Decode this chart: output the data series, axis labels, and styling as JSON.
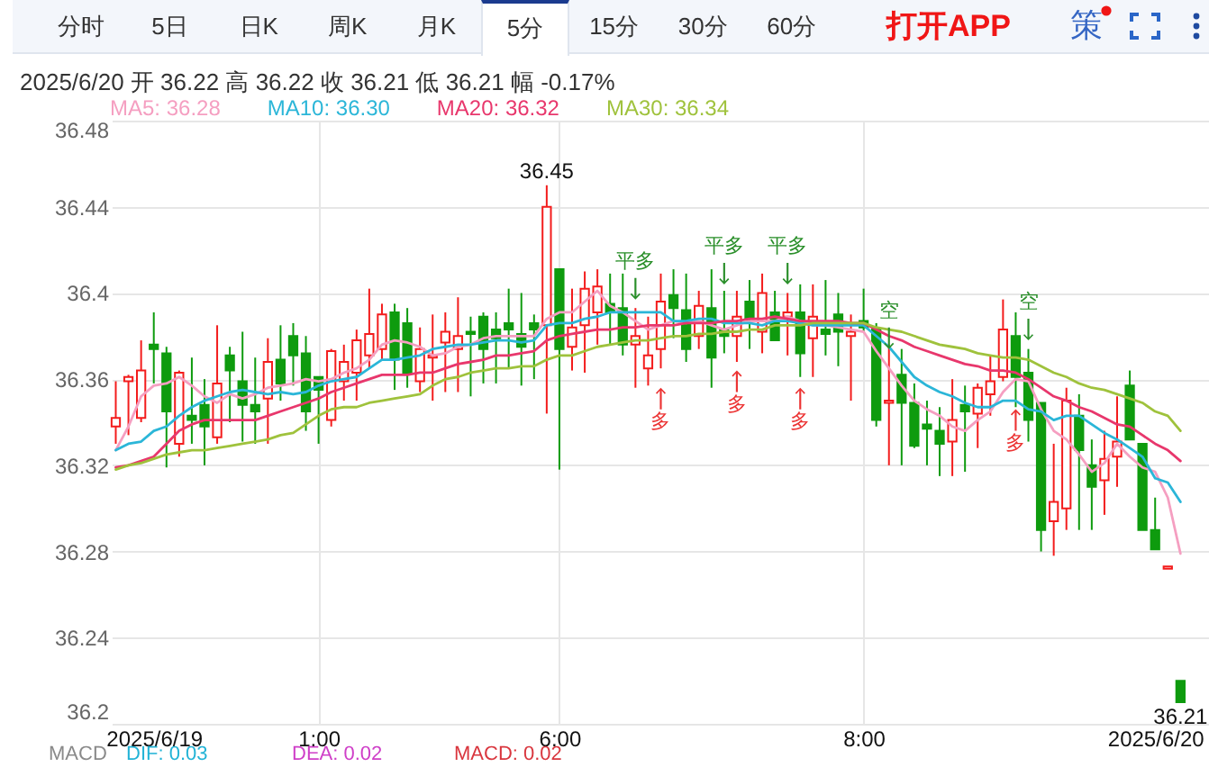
{
  "chart_data": {
    "type": "candlestick",
    "subtitle": "2025/6/20 开 36.22 高 36.22 收 36.21 低 36.21 幅 -0.17%",
    "categories": [
      null,
      null,
      null,
      "2025/6/19",
      null,
      null,
      null,
      null,
      null,
      null,
      null,
      null,
      null,
      null,
      null,
      null,
      "1:00",
      null,
      null,
      null,
      null,
      null,
      null,
      null,
      null,
      null,
      null,
      null,
      null,
      null,
      null,
      null,
      null,
      null,
      null,
      "6:00",
      null,
      null,
      null,
      null,
      null,
      null,
      null,
      null,
      null,
      null,
      null,
      null,
      null,
      null,
      null,
      null,
      null,
      null,
      null,
      null,
      null,
      null,
      null,
      "8:00",
      null,
      null,
      null,
      null,
      null,
      null,
      null,
      null,
      null,
      null,
      null,
      null,
      null,
      null,
      null,
      null,
      null,
      null,
      null,
      null,
      null,
      null,
      "2025/6/20",
      null,
      null
    ],
    "ohlc": [
      [
        36.338,
        36.359,
        36.33,
        36.342
      ],
      [
        36.359,
        36.362,
        36.334,
        36.361
      ],
      [
        36.342,
        36.378,
        36.34,
        36.364
      ],
      [
        36.376,
        36.391,
        36.358,
        36.374
      ],
      [
        36.372,
        36.375,
        36.319,
        36.345
      ],
      [
        36.33,
        36.364,
        36.324,
        36.363
      ],
      [
        36.343,
        36.37,
        36.33,
        36.341
      ],
      [
        36.348,
        36.36,
        36.32,
        36.338
      ],
      [
        36.333,
        36.385,
        36.33,
        36.358
      ],
      [
        36.371,
        36.375,
        36.34,
        36.364
      ],
      [
        36.359,
        36.382,
        36.331,
        36.348
      ],
      [
        36.348,
        36.37,
        36.33,
        36.345
      ],
      [
        36.351,
        36.379,
        36.33,
        36.368
      ],
      [
        36.369,
        36.385,
        36.35,
        36.358
      ],
      [
        36.38,
        36.386,
        36.357,
        36.371
      ],
      [
        36.372,
        36.38,
        36.336,
        36.345
      ],
      [
        36.361,
        36.361,
        36.33,
        36.355
      ],
      [
        36.341,
        36.374,
        36.338,
        36.373
      ],
      [
        36.359,
        36.376,
        36.35,
        36.368
      ],
      [
        36.363,
        36.383,
        36.35,
        36.378
      ],
      [
        36.371,
        36.402,
        36.365,
        36.381
      ],
      [
        36.374,
        36.395,
        36.369,
        36.39
      ],
      [
        36.391,
        36.395,
        36.355,
        36.369
      ],
      [
        36.386,
        36.393,
        36.356,
        36.363
      ],
      [
        36.359,
        36.384,
        36.354,
        36.374
      ],
      [
        36.37,
        36.39,
        36.35,
        36.371
      ],
      [
        36.377,
        36.391,
        36.354,
        36.382
      ],
      [
        36.374,
        36.398,
        36.354,
        36.38
      ],
      [
        36.382,
        36.389,
        36.352,
        36.381
      ],
      [
        36.389,
        36.391,
        36.358,
        36.374
      ],
      [
        36.383,
        36.391,
        36.358,
        36.379
      ],
      [
        36.386,
        36.402,
        36.365,
        36.383
      ],
      [
        36.381,
        36.4,
        36.357,
        36.375
      ],
      [
        36.386,
        36.39,
        36.36,
        36.383
      ],
      [
        36.385,
        36.45,
        36.344,
        36.44
      ],
      [
        36.411,
        36.411,
        36.318,
        36.374
      ],
      [
        36.375,
        36.402,
        36.364,
        36.384
      ],
      [
        36.385,
        36.41,
        36.363,
        36.402
      ],
      [
        36.391,
        36.411,
        36.376,
        36.403
      ],
      [
        36.395,
        36.409,
        36.376,
        36.391
      ],
      [
        36.393,
        36.409,
        36.371,
        36.376
      ],
      [
        36.376,
        36.393,
        36.356,
        36.38
      ],
      [
        36.365,
        36.389,
        36.357,
        36.371
      ],
      [
        36.374,
        36.409,
        36.365,
        36.396
      ],
      [
        36.399,
        36.411,
        36.379,
        36.393
      ],
      [
        36.392,
        36.409,
        36.368,
        36.374
      ],
      [
        36.38,
        36.401,
        36.374,
        36.394
      ],
      [
        36.393,
        36.411,
        36.356,
        36.37
      ],
      [
        36.383,
        36.401,
        36.372,
        36.38
      ],
      [
        36.38,
        36.401,
        36.368,
        36.389
      ],
      [
        36.396,
        36.406,
        36.374,
        36.388
      ],
      [
        36.382,
        36.409,
        36.372,
        36.4
      ],
      [
        36.391,
        36.401,
        36.378,
        36.378
      ],
      [
        36.389,
        36.4,
        36.371,
        36.391
      ],
      [
        36.391,
        36.404,
        36.361,
        36.372
      ],
      [
        36.379,
        36.404,
        36.361,
        36.389
      ],
      [
        36.383,
        36.406,
        36.371,
        36.381
      ],
      [
        36.39,
        36.4,
        36.366,
        36.382
      ],
      [
        36.38,
        36.39,
        36.35,
        36.382
      ],
      [
        36.387,
        36.402,
        36.382,
        36.384
      ],
      [
        36.383,
        36.386,
        36.338,
        36.341
      ],
      [
        36.349,
        36.376,
        36.32,
        36.35
      ],
      [
        36.362,
        36.374,
        36.32,
        36.349
      ],
      [
        36.349,
        36.358,
        36.328,
        36.329
      ],
      [
        36.339,
        36.35,
        36.32,
        36.337
      ],
      [
        36.336,
        36.347,
        36.315,
        36.33
      ],
      [
        36.331,
        36.36,
        36.315,
        36.341
      ],
      [
        36.348,
        36.357,
        36.317,
        36.345
      ],
      [
        36.344,
        36.358,
        36.328,
        36.356
      ],
      [
        36.353,
        36.371,
        36.343,
        36.359
      ],
      [
        36.361,
        36.397,
        36.359,
        36.383
      ],
      [
        36.38,
        36.391,
        36.347,
        36.361
      ],
      [
        36.363,
        36.374,
        36.331,
        36.341
      ],
      [
        36.349,
        36.349,
        36.28,
        36.29
      ],
      [
        36.294,
        36.33,
        36.278,
        36.303
      ],
      [
        36.3,
        36.356,
        36.29,
        36.35
      ],
      [
        36.343,
        36.353,
        36.29,
        36.327
      ],
      [
        36.32,
        36.332,
        36.29,
        36.31
      ],
      [
        36.313,
        36.336,
        36.297,
        36.323
      ],
      [
        36.324,
        36.352,
        36.31,
        36.331
      ],
      [
        36.357,
        36.364,
        36.332,
        36.332
      ],
      [
        36.33,
        36.33,
        36.29,
        36.29
      ],
      [
        36.29,
        36.305,
        36.281,
        36.281
      ],
      [
        36.272,
        36.273,
        36.272,
        36.273
      ],
      [
        36.22,
        36.22,
        36.21,
        36.21
      ]
    ],
    "series": [
      {
        "name": "MA5: 36.28",
        "type": "line",
        "color": "#f59fc1",
        "values": [
          36.327,
          36.338,
          36.352,
          36.357,
          36.358,
          36.361,
          36.357,
          36.352,
          36.349,
          36.353,
          36.351,
          36.353,
          36.356,
          36.357,
          36.358,
          36.36,
          36.359,
          36.36,
          36.363,
          36.365,
          36.369,
          36.376,
          36.378,
          36.377,
          36.375,
          36.371,
          36.372,
          36.375,
          36.376,
          36.379,
          36.38,
          36.38,
          36.38,
          36.38,
          36.388,
          36.391,
          36.391,
          36.396,
          36.401,
          36.394,
          36.391,
          36.387,
          36.383,
          36.385,
          36.387,
          36.386,
          36.387,
          36.385,
          36.383,
          36.385,
          36.387,
          36.387,
          36.387,
          36.389,
          36.387,
          36.385,
          36.385,
          36.384,
          36.383,
          36.382,
          36.373,
          36.365,
          36.357,
          36.35,
          36.346,
          36.343,
          36.338,
          36.336,
          36.341,
          36.345,
          36.354,
          36.36,
          36.359,
          36.346,
          36.336,
          36.332,
          36.325,
          36.317,
          36.321,
          36.33,
          36.324,
          36.319,
          36.317,
          36.305,
          36.279
        ]
      },
      {
        "name": "MA10: 36.30",
        "type": "line",
        "color": "#2bb6d8",
        "values": [
          36.327,
          36.33,
          36.331,
          36.336,
          36.338,
          36.343,
          36.347,
          36.35,
          36.352,
          36.354,
          36.355,
          36.354,
          36.353,
          36.354,
          36.353,
          36.354,
          36.357,
          36.359,
          36.36,
          36.361,
          36.365,
          36.369,
          36.369,
          36.37,
          36.371,
          36.374,
          36.375,
          36.376,
          36.376,
          36.377,
          36.378,
          36.378,
          36.377,
          36.378,
          36.385,
          36.386,
          36.386,
          36.388,
          36.389,
          36.391,
          36.391,
          36.391,
          36.391,
          36.391,
          36.387,
          36.387,
          36.388,
          36.388,
          36.386,
          36.386,
          36.386,
          36.385,
          36.387,
          36.387,
          36.386,
          36.385,
          36.385,
          36.385,
          36.385,
          36.385,
          36.38,
          36.375,
          36.368,
          36.361,
          36.357,
          36.354,
          36.352,
          36.349,
          36.347,
          36.347,
          36.35,
          36.35,
          36.346,
          36.345,
          36.341,
          36.343,
          36.343,
          36.339,
          36.335,
          36.332,
          36.328,
          36.324,
          36.314,
          36.312,
          36.303
        ]
      },
      {
        "name": "MA20: 36.32",
        "type": "line",
        "color": "#e8376c",
        "values": [
          36.319,
          36.32,
          36.322,
          36.324,
          36.33,
          36.336,
          36.339,
          36.341,
          36.341,
          36.341,
          36.341,
          36.341,
          36.343,
          36.345,
          36.347,
          36.349,
          36.351,
          36.354,
          36.356,
          36.358,
          36.36,
          36.362,
          36.362,
          36.362,
          36.363,
          36.363,
          36.365,
          36.367,
          36.368,
          36.369,
          36.371,
          36.371,
          36.372,
          36.373,
          36.378,
          36.38,
          36.381,
          36.382,
          36.383,
          36.383,
          36.384,
          36.384,
          36.385,
          36.385,
          36.385,
          36.386,
          36.386,
          36.386,
          36.387,
          36.387,
          36.388,
          36.388,
          36.389,
          36.388,
          36.387,
          36.387,
          36.387,
          36.387,
          36.386,
          36.386,
          36.383,
          36.38,
          36.378,
          36.375,
          36.373,
          36.371,
          36.369,
          36.367,
          36.366,
          36.364,
          36.364,
          36.363,
          36.36,
          36.356,
          36.352,
          36.35,
          36.347,
          36.345,
          36.342,
          36.339,
          36.338,
          36.334,
          36.33,
          36.327,
          36.322
        ]
      },
      {
        "name": "MA30: 36.34",
        "type": "line",
        "color": "#9fc23c",
        "values": [
          36.318,
          36.32,
          36.321,
          36.323,
          36.325,
          36.326,
          36.327,
          36.327,
          36.328,
          36.329,
          36.33,
          36.331,
          36.332,
          36.334,
          36.335,
          36.339,
          36.343,
          36.346,
          36.347,
          36.347,
          36.349,
          36.35,
          36.351,
          36.352,
          36.353,
          36.357,
          36.36,
          36.361,
          36.363,
          36.364,
          36.365,
          36.365,
          36.366,
          36.366,
          36.369,
          36.371,
          36.371,
          36.373,
          36.375,
          36.376,
          36.377,
          36.378,
          36.378,
          36.379,
          36.38,
          36.38,
          36.381,
          36.381,
          36.382,
          36.382,
          36.383,
          36.383,
          36.385,
          36.385,
          36.385,
          36.386,
          36.386,
          36.386,
          36.386,
          36.386,
          36.384,
          36.383,
          36.382,
          36.38,
          36.378,
          36.376,
          36.375,
          36.374,
          36.372,
          36.371,
          36.37,
          36.37,
          36.369,
          36.366,
          36.363,
          36.361,
          36.358,
          36.356,
          36.355,
          36.353,
          36.351,
          36.349,
          36.345,
          36.343,
          36.336
        ]
      },
      {
        "type": "scatter",
        "color": "#2a8f2a",
        "values": [
          null,
          null,
          null,
          null,
          null,
          null,
          null,
          null,
          null,
          null,
          null,
          null,
          null,
          null,
          null,
          null,
          null,
          null,
          null,
          null,
          null,
          null,
          null,
          null,
          null,
          null,
          null,
          null,
          null,
          null,
          null,
          null,
          null,
          null,
          null,
          null,
          null,
          null,
          null,
          null,
          null,
          36.402,
          null,
          null,
          null,
          null,
          null,
          null,
          36.409,
          null,
          null,
          null,
          null,
          36.409,
          null,
          null,
          null,
          null,
          null,
          null,
          null,
          36.379,
          null,
          null,
          null,
          null,
          null,
          null,
          null,
          null,
          null,
          null,
          36.383,
          null,
          null,
          null,
          null,
          null,
          null,
          null,
          null,
          null,
          null,
          null,
          null
        ],
        "value_labels": [
          null,
          null,
          null,
          null,
          null,
          null,
          null,
          null,
          null,
          null,
          null,
          null,
          null,
          null,
          null,
          null,
          null,
          null,
          null,
          null,
          null,
          null,
          null,
          null,
          null,
          null,
          null,
          null,
          null,
          null,
          null,
          null,
          null,
          null,
          null,
          null,
          null,
          null,
          null,
          null,
          null,
          "平多",
          null,
          null,
          null,
          null,
          null,
          null,
          "平多",
          null,
          null,
          null,
          null,
          "平多",
          null,
          null,
          null,
          null,
          null,
          null,
          null,
          "空",
          null,
          null,
          null,
          null,
          null,
          null,
          null,
          null,
          null,
          null,
          "空",
          null,
          null,
          null,
          null,
          null,
          null,
          null,
          null,
          null,
          null,
          null,
          null
        ]
      },
      {
        "type": "scatter",
        "color": "#ec3434",
        "values": [
          null,
          null,
          null,
          null,
          null,
          null,
          null,
          null,
          null,
          null,
          null,
          null,
          null,
          null,
          null,
          null,
          null,
          null,
          null,
          null,
          null,
          null,
          null,
          null,
          null,
          null,
          null,
          null,
          null,
          null,
          null,
          null,
          null,
          null,
          null,
          null,
          null,
          null,
          null,
          null,
          null,
          null,
          null,
          36.351,
          null,
          null,
          null,
          null,
          null,
          36.359,
          null,
          null,
          null,
          null,
          36.351,
          null,
          null,
          null,
          null,
          null,
          null,
          null,
          null,
          null,
          null,
          null,
          null,
          null,
          null,
          null,
          null,
          36.341,
          null,
          null,
          null,
          null,
          null,
          null,
          null,
          null,
          null,
          null,
          null,
          null,
          null
        ],
        "value_labels": [
          null,
          null,
          null,
          null,
          null,
          null,
          null,
          null,
          null,
          null,
          null,
          null,
          null,
          null,
          null,
          null,
          null,
          null,
          null,
          null,
          null,
          null,
          null,
          null,
          null,
          null,
          null,
          null,
          null,
          null,
          null,
          null,
          null,
          null,
          null,
          null,
          null,
          null,
          null,
          null,
          null,
          null,
          null,
          "多",
          null,
          null,
          null,
          null,
          null,
          "多",
          null,
          null,
          null,
          null,
          "多",
          null,
          null,
          null,
          null,
          null,
          null,
          null,
          null,
          null,
          null,
          null,
          null,
          null,
          null,
          null,
          null,
          "多",
          null,
          null,
          null,
          null,
          null,
          null,
          null,
          null,
          null,
          null,
          null,
          null,
          null
        ]
      }
    ],
    "ylim": [
      36.2,
      36.48
    ],
    "yticks": [
      36.2,
      36.24,
      36.28,
      36.32,
      36.36,
      36.4,
      36.44,
      36.48
    ],
    "grid": true,
    "legend": "top left",
    "annotations": [
      "分时",
      "5日",
      "日K",
      "周K",
      "月K",
      "5分",
      "15分",
      "30分",
      "60分",
      "打开APP",
      "策",
      {
        "text": "36.45",
        "y": 36.45
      },
      {
        "text": "36.21",
        "y": 36.21
      },
      "MACD",
      "DIF: 0.03",
      "DEA: 0.02",
      "MACD: 0.02"
    ]
  }
}
